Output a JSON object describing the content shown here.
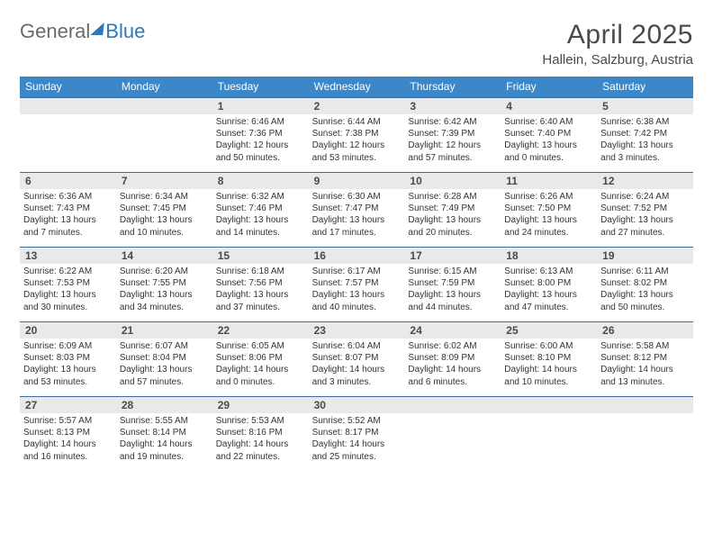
{
  "brand": {
    "general": "General",
    "blue": "Blue"
  },
  "title": "April 2025",
  "location": "Hallein, Salzburg, Austria",
  "colors": {
    "header_bg": "#3b87c8",
    "header_text": "#ffffff",
    "week_border": "#3b6ea3",
    "daynum_bg": "#e9e9e9",
    "text": "#333333",
    "title_text": "#4a4a4a"
  },
  "day_names": [
    "Sunday",
    "Monday",
    "Tuesday",
    "Wednesday",
    "Thursday",
    "Friday",
    "Saturday"
  ],
  "weeks": [
    [
      null,
      null,
      {
        "n": "1",
        "sr": "6:46 AM",
        "ss": "7:36 PM",
        "dl": "12 hours and 50 minutes."
      },
      {
        "n": "2",
        "sr": "6:44 AM",
        "ss": "7:38 PM",
        "dl": "12 hours and 53 minutes."
      },
      {
        "n": "3",
        "sr": "6:42 AM",
        "ss": "7:39 PM",
        "dl": "12 hours and 57 minutes."
      },
      {
        "n": "4",
        "sr": "6:40 AM",
        "ss": "7:40 PM",
        "dl": "13 hours and 0 minutes."
      },
      {
        "n": "5",
        "sr": "6:38 AM",
        "ss": "7:42 PM",
        "dl": "13 hours and 3 minutes."
      }
    ],
    [
      {
        "n": "6",
        "sr": "6:36 AM",
        "ss": "7:43 PM",
        "dl": "13 hours and 7 minutes."
      },
      {
        "n": "7",
        "sr": "6:34 AM",
        "ss": "7:45 PM",
        "dl": "13 hours and 10 minutes."
      },
      {
        "n": "8",
        "sr": "6:32 AM",
        "ss": "7:46 PM",
        "dl": "13 hours and 14 minutes."
      },
      {
        "n": "9",
        "sr": "6:30 AM",
        "ss": "7:47 PM",
        "dl": "13 hours and 17 minutes."
      },
      {
        "n": "10",
        "sr": "6:28 AM",
        "ss": "7:49 PM",
        "dl": "13 hours and 20 minutes."
      },
      {
        "n": "11",
        "sr": "6:26 AM",
        "ss": "7:50 PM",
        "dl": "13 hours and 24 minutes."
      },
      {
        "n": "12",
        "sr": "6:24 AM",
        "ss": "7:52 PM",
        "dl": "13 hours and 27 minutes."
      }
    ],
    [
      {
        "n": "13",
        "sr": "6:22 AM",
        "ss": "7:53 PM",
        "dl": "13 hours and 30 minutes."
      },
      {
        "n": "14",
        "sr": "6:20 AM",
        "ss": "7:55 PM",
        "dl": "13 hours and 34 minutes."
      },
      {
        "n": "15",
        "sr": "6:18 AM",
        "ss": "7:56 PM",
        "dl": "13 hours and 37 minutes."
      },
      {
        "n": "16",
        "sr": "6:17 AM",
        "ss": "7:57 PM",
        "dl": "13 hours and 40 minutes."
      },
      {
        "n": "17",
        "sr": "6:15 AM",
        "ss": "7:59 PM",
        "dl": "13 hours and 44 minutes."
      },
      {
        "n": "18",
        "sr": "6:13 AM",
        "ss": "8:00 PM",
        "dl": "13 hours and 47 minutes."
      },
      {
        "n": "19",
        "sr": "6:11 AM",
        "ss": "8:02 PM",
        "dl": "13 hours and 50 minutes."
      }
    ],
    [
      {
        "n": "20",
        "sr": "6:09 AM",
        "ss": "8:03 PM",
        "dl": "13 hours and 53 minutes."
      },
      {
        "n": "21",
        "sr": "6:07 AM",
        "ss": "8:04 PM",
        "dl": "13 hours and 57 minutes."
      },
      {
        "n": "22",
        "sr": "6:05 AM",
        "ss": "8:06 PM",
        "dl": "14 hours and 0 minutes."
      },
      {
        "n": "23",
        "sr": "6:04 AM",
        "ss": "8:07 PM",
        "dl": "14 hours and 3 minutes."
      },
      {
        "n": "24",
        "sr": "6:02 AM",
        "ss": "8:09 PM",
        "dl": "14 hours and 6 minutes."
      },
      {
        "n": "25",
        "sr": "6:00 AM",
        "ss": "8:10 PM",
        "dl": "14 hours and 10 minutes."
      },
      {
        "n": "26",
        "sr": "5:58 AM",
        "ss": "8:12 PM",
        "dl": "14 hours and 13 minutes."
      }
    ],
    [
      {
        "n": "27",
        "sr": "5:57 AM",
        "ss": "8:13 PM",
        "dl": "14 hours and 16 minutes."
      },
      {
        "n": "28",
        "sr": "5:55 AM",
        "ss": "8:14 PM",
        "dl": "14 hours and 19 minutes."
      },
      {
        "n": "29",
        "sr": "5:53 AM",
        "ss": "8:16 PM",
        "dl": "14 hours and 22 minutes."
      },
      {
        "n": "30",
        "sr": "5:52 AM",
        "ss": "8:17 PM",
        "dl": "14 hours and 25 minutes."
      },
      null,
      null,
      null
    ]
  ],
  "labels": {
    "sunrise": "Sunrise:",
    "sunset": "Sunset:",
    "daylight": "Daylight:"
  }
}
